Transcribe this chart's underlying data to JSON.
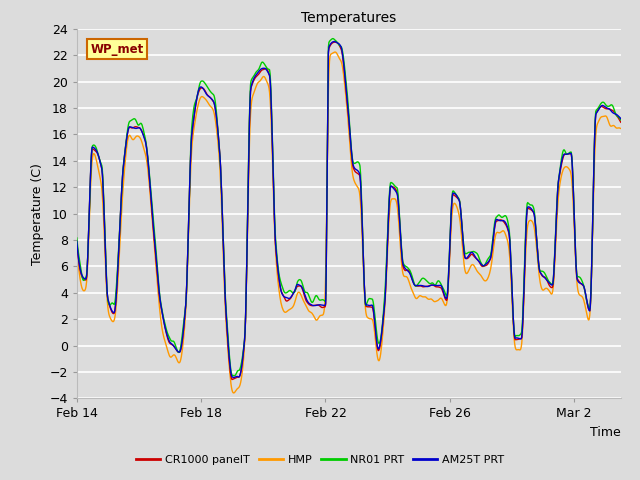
{
  "title": "Temperatures",
  "xlabel": "Time",
  "ylabel": "Temperature (C)",
  "ylim": [
    -4,
    24
  ],
  "yticks": [
    -4,
    -2,
    0,
    2,
    4,
    6,
    8,
    10,
    12,
    14,
    16,
    18,
    20,
    22,
    24
  ],
  "xtick_labels": [
    "Feb 14",
    "Feb 18",
    "Feb 22",
    "Feb 26",
    "Mar 2"
  ],
  "xtick_positions": [
    0,
    4,
    8,
    12,
    16
  ],
  "xlim": [
    0,
    17.5
  ],
  "bg_color": "#dcdcdc",
  "grid_color": "#ffffff",
  "legend_labels": [
    "CR1000 panelT",
    "HMP",
    "NR01 PRT",
    "AM25T PRT"
  ],
  "line_colors": [
    "#cc0000",
    "#ff9900",
    "#00cc00",
    "#0000cc"
  ],
  "line_width": 1.0,
  "annotation_text": "WP_met",
  "annotation_bg": "#ffff99",
  "annotation_border": "#cc6600",
  "annotation_text_color": "#880000",
  "title_fontsize": 10,
  "axis_label_fontsize": 9,
  "tick_fontsize": 9,
  "legend_fontsize": 8
}
